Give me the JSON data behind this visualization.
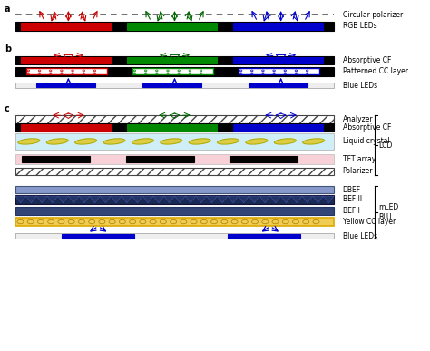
{
  "fig_width": 4.74,
  "fig_height": 3.87,
  "dpi": 100,
  "bg_color": "#ffffff",
  "label_a": "a",
  "label_b": "b",
  "label_c": "c",
  "text_circular_polarizer": "Circular polarizer",
  "text_rgb_leds": "RGB LEDs",
  "text_absorptive_cf": "Absorptive CF",
  "text_patterned_cc": "Patterned CC layer",
  "text_blue_leds": "Blue LEDs",
  "text_analyzer": "Analyzer",
  "text_absorptive_cf2": "Absorptive CF",
  "text_liquid_crystal": "Liquid crystal",
  "text_tft_array": "TFT array",
  "text_polarizer": "Polarizer",
  "text_dbef": "DBEF",
  "text_bef2": "BEF II",
  "text_bef1": "BEF I",
  "text_yellow_cc": "Yellow CC layer",
  "text_blue_leds2": "Blue LEDs",
  "text_lcd": "LCD",
  "text_mled_blu": "mLED\nBLU",
  "red_color": "#cc0000",
  "green_color": "#008800",
  "blue_color": "#0000cc",
  "light_blue_color": "#d0eef8",
  "pink_color": "#f8d0d8",
  "yellow_color": "#ddaa00"
}
